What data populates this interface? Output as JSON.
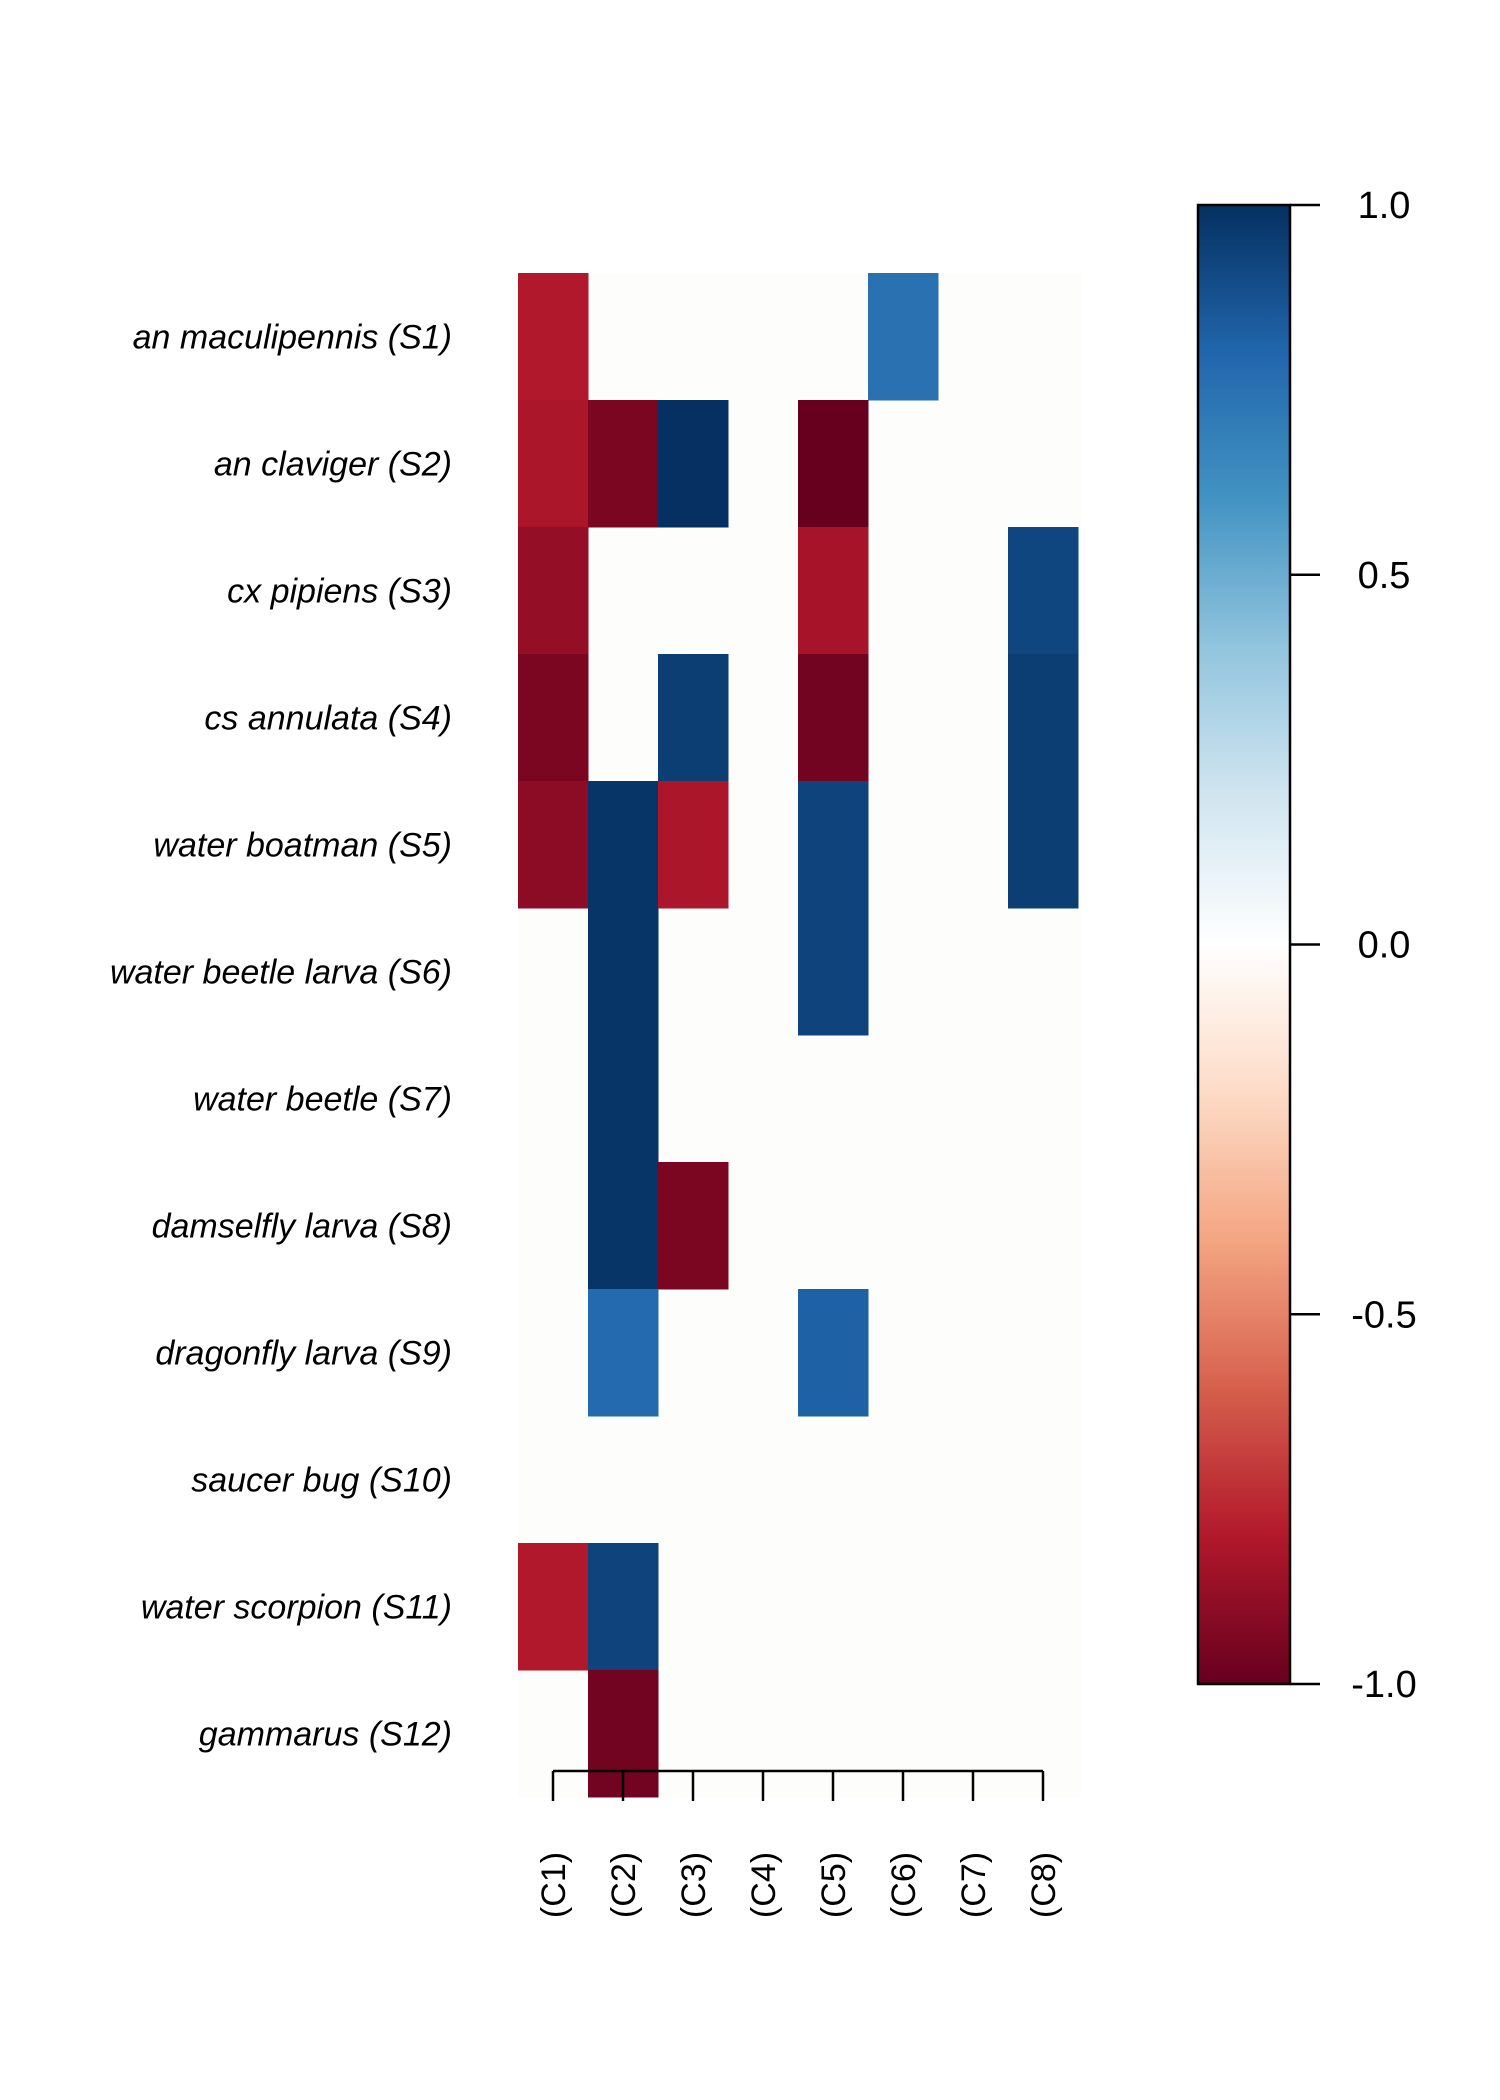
{
  "chart_data": {
    "type": "heatmap",
    "rows": [
      "an maculipennis (S1)",
      "an claviger (S2)",
      "cx pipiens (S3)",
      "cs annulata (S4)",
      "water boatman (S5)",
      "water beetle larva (S6)",
      "water beetle (S7)",
      "damselfly larva (S8)",
      "dragonfly larva (S9)",
      "saucer bug (S10)",
      "water scorpion (S11)",
      "gammarus (S12)"
    ],
    "columns": [
      "(C1)",
      "(C2)",
      "(C3)",
      "(C4)",
      "(C5)",
      "(C6)",
      "(C7)",
      "(C8)"
    ],
    "values": [
      [
        -0.8,
        0,
        0,
        0,
        0,
        0.75,
        0,
        0
      ],
      [
        -0.82,
        -0.95,
        1.0,
        0,
        -1.0,
        0,
        0,
        0
      ],
      [
        -0.88,
        0,
        0,
        0,
        -0.83,
        0,
        0,
        0.92
      ],
      [
        -0.95,
        0,
        0.95,
        0,
        -0.97,
        0,
        0,
        0.95
      ],
      [
        -0.9,
        0.98,
        -0.82,
        0,
        0.93,
        0,
        0,
        0.95
      ],
      [
        0,
        0.98,
        0,
        0,
        0.93,
        0,
        0,
        0
      ],
      [
        0,
        0.98,
        0,
        0,
        0,
        0,
        0,
        0
      ],
      [
        0,
        0.98,
        -0.95,
        0,
        0,
        0,
        0,
        0
      ],
      [
        0,
        0.78,
        0,
        0,
        0.82,
        0,
        0,
        0
      ],
      [
        0,
        0,
        0,
        0,
        0,
        0,
        0,
        0
      ],
      [
        -0.8,
        0.93,
        0,
        0,
        0,
        0,
        0,
        0
      ],
      [
        0,
        -0.97,
        0,
        0,
        0,
        0,
        0,
        0
      ]
    ],
    "colorbar": {
      "range": [
        -1.0,
        1.0
      ],
      "ticks": [
        "1.0",
        "0.5",
        "0.0",
        "-0.5",
        "-1.0"
      ],
      "tick_values": [
        1.0,
        0.5,
        0.0,
        -0.5,
        -1.0
      ],
      "palette": [
        "#67001F",
        "#B2182B",
        "#D6604D",
        "#F4A582",
        "#FDDBC7",
        "#FFFFFF",
        "#D1E5F0",
        "#92C5DE",
        "#4393C3",
        "#2166AC",
        "#053061"
      ]
    },
    "background_color": "#FDFDFB"
  }
}
